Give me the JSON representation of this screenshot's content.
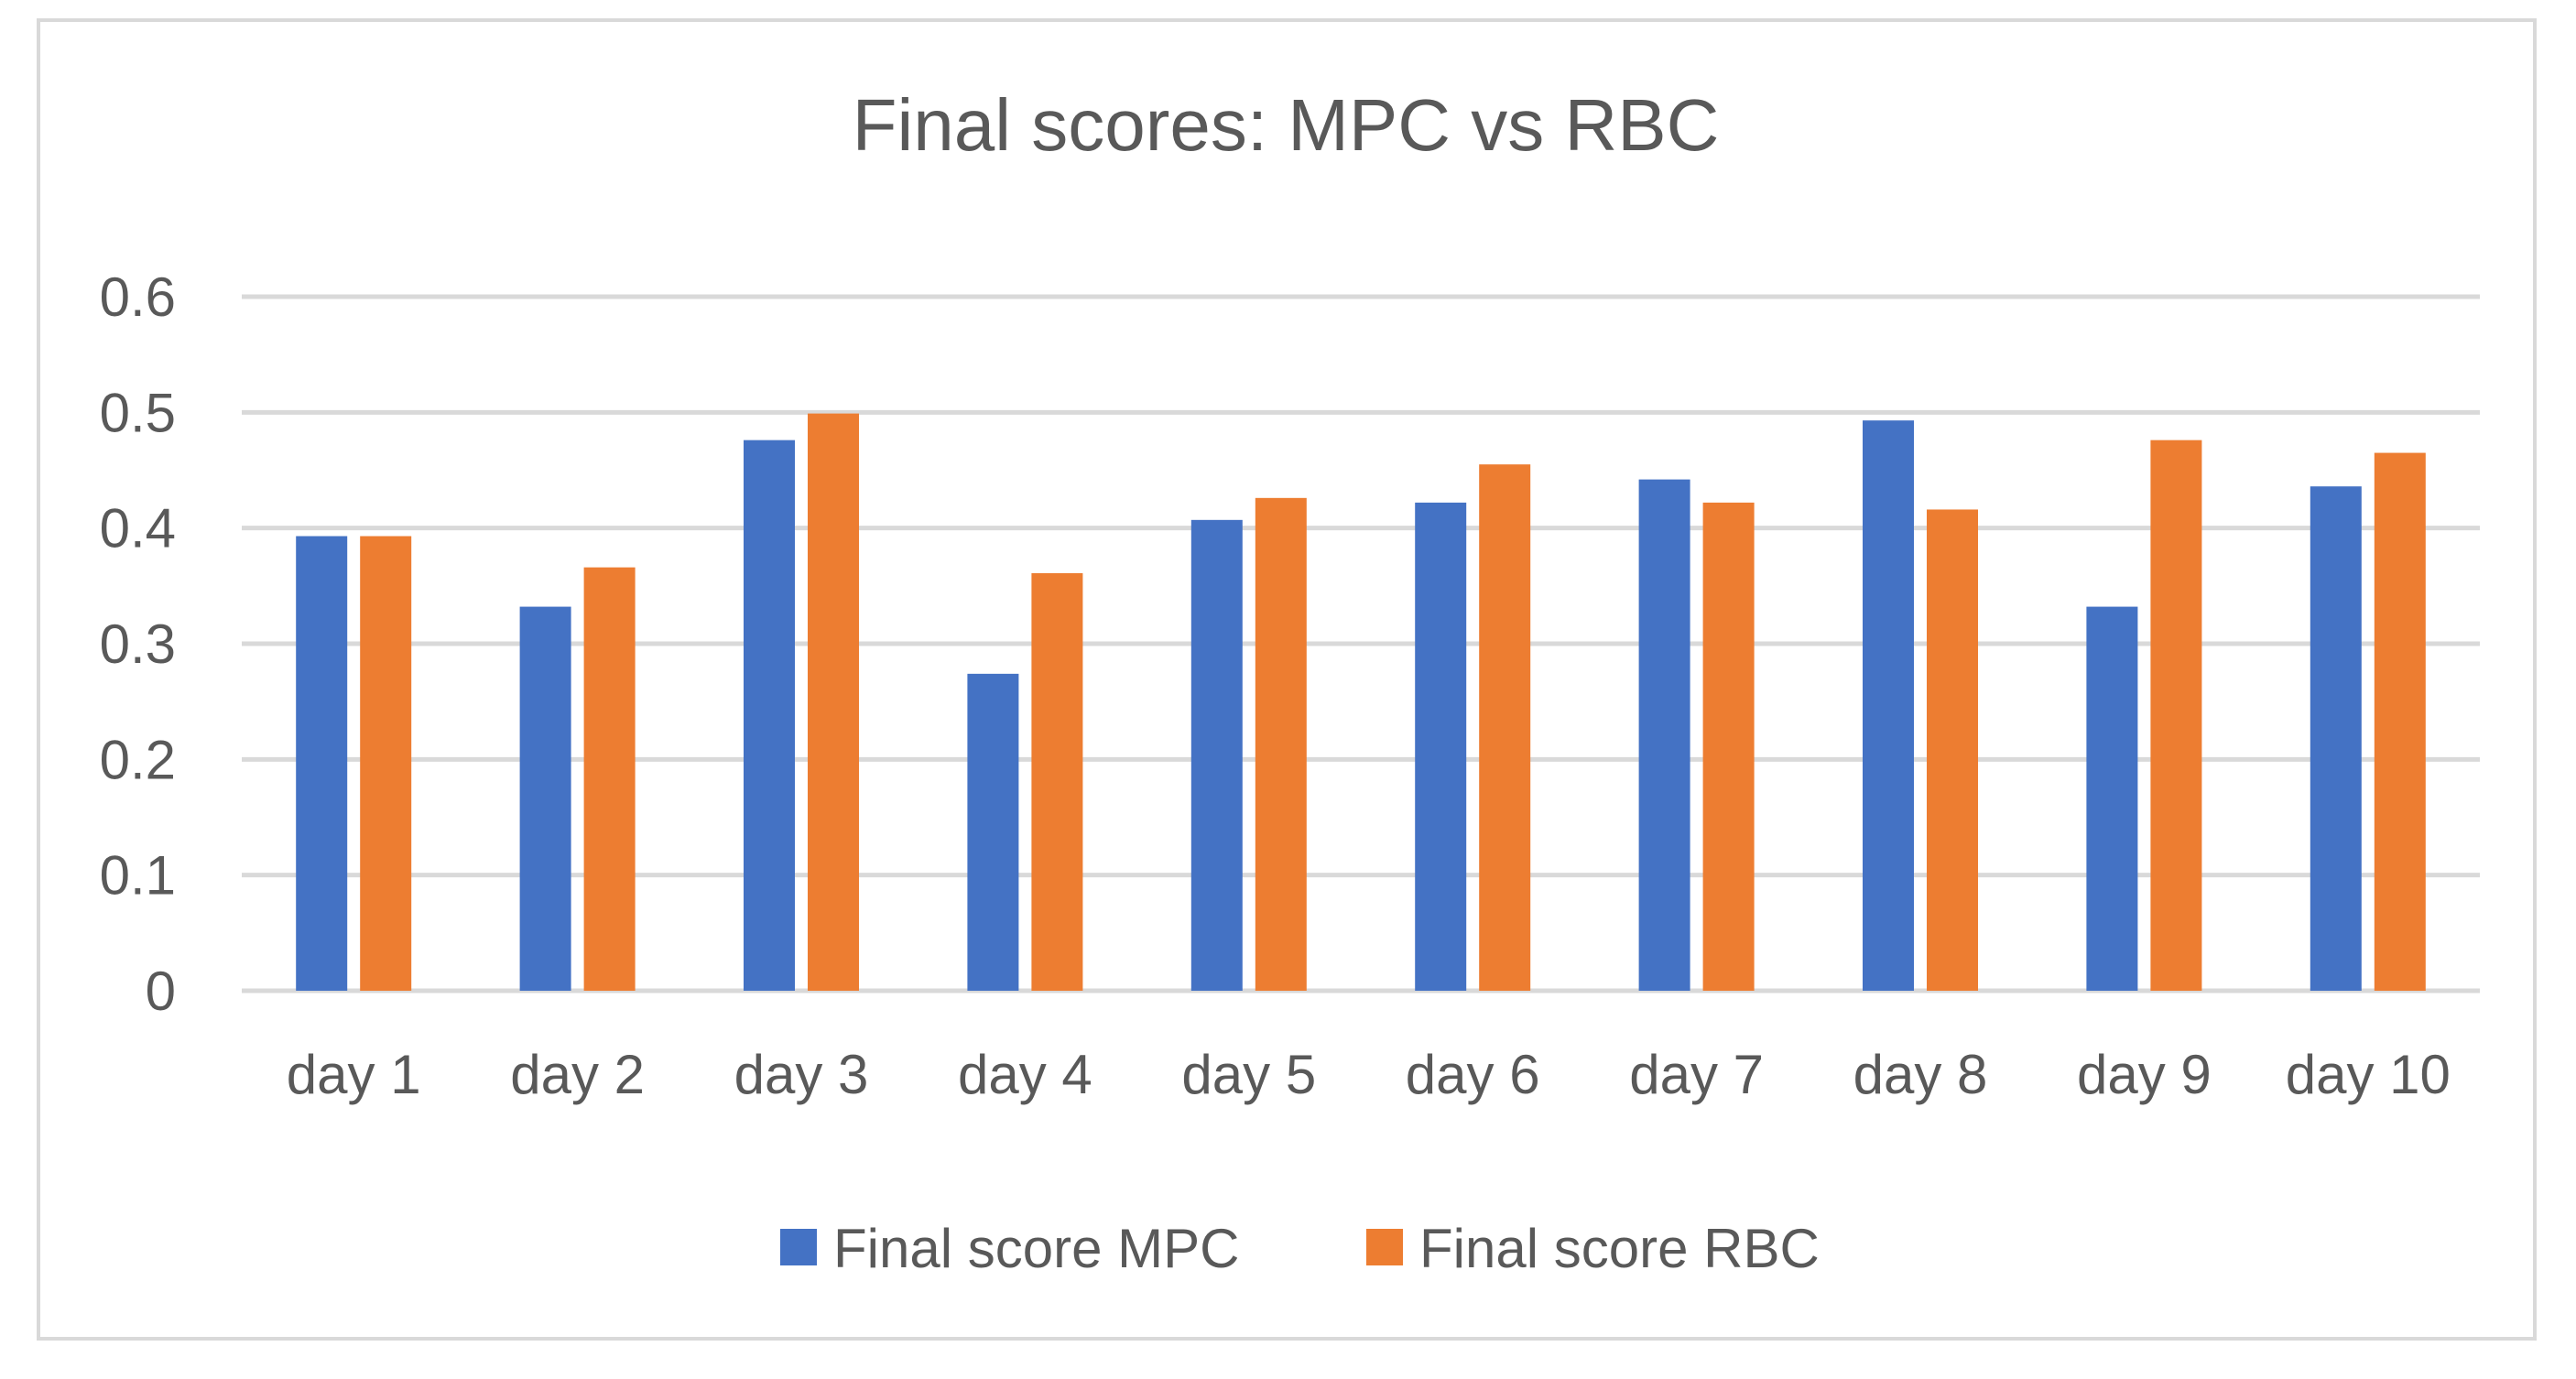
{
  "chart_data": {
    "type": "bar",
    "title": "Final scores: MPC vs RBC",
    "xlabel": "",
    "ylabel": "",
    "categories": [
      "day 1",
      "day 2",
      "day 3",
      "day 4",
      "day 5",
      "day 6",
      "day 7",
      "day 8",
      "day 9",
      "day 10"
    ],
    "series": [
      {
        "name": "Final score MPC",
        "color": "#4472c4",
        "values": [
          0.393,
          0.332,
          0.476,
          0.274,
          0.407,
          0.422,
          0.442,
          0.493,
          0.332,
          0.436
        ]
      },
      {
        "name": "Final score RBC",
        "color": "#ed7d31",
        "values": [
          0.393,
          0.366,
          0.499,
          0.361,
          0.426,
          0.455,
          0.422,
          0.416,
          0.476,
          0.465
        ]
      }
    ],
    "yticks": [
      "0",
      "0.1",
      "0.2",
      "0.3",
      "0.4",
      "0.5",
      "0.6"
    ],
    "ylim": [
      0,
      0.6
    ],
    "grid": true,
    "legend": "bottom-center"
  }
}
